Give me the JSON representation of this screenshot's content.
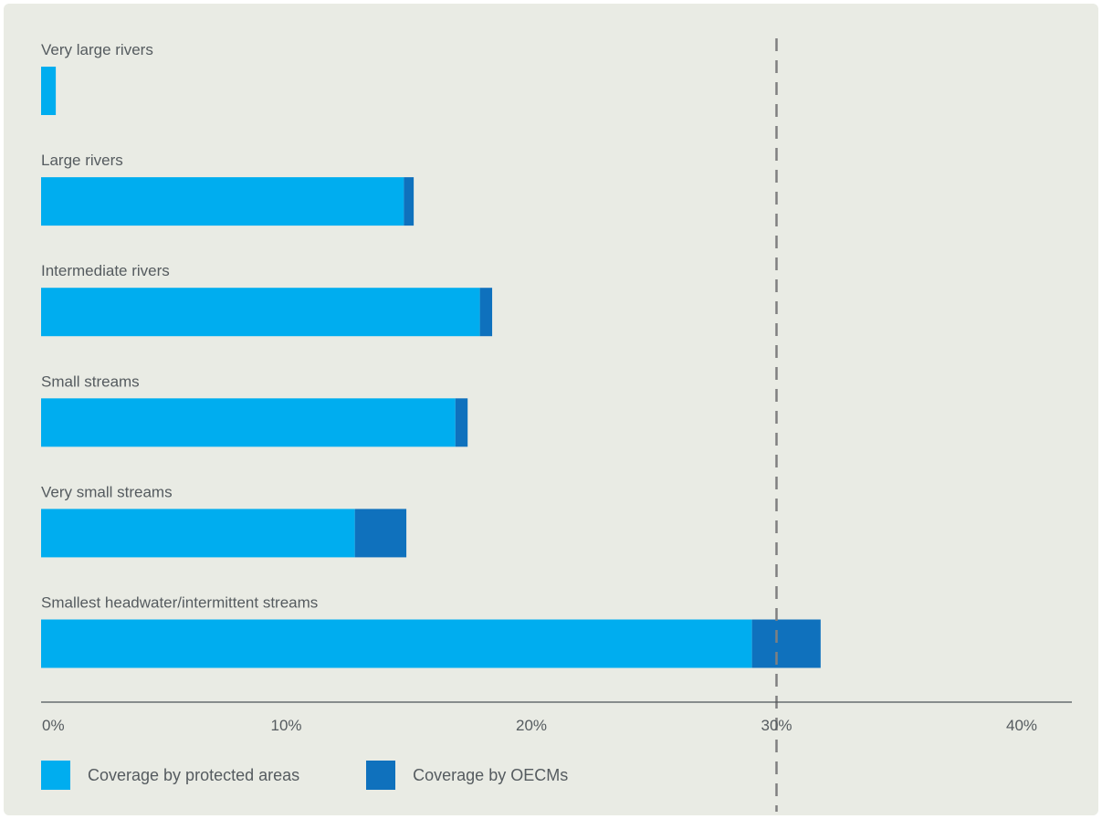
{
  "chart_data": {
    "type": "bar",
    "orientation": "horizontal",
    "stacked": true,
    "categories": [
      "Very large rivers",
      "Large rivers",
      "Intermediate rivers",
      "Small streams",
      "Very small streams",
      "Smallest headwater/intermittent streams"
    ],
    "series": [
      {
        "name": "Coverage by protected areas",
        "color": "#00adef",
        "values": [
          0.6,
          14.8,
          17.9,
          16.9,
          12.8,
          29.0
        ]
      },
      {
        "name": "Coverage by OECMs",
        "color": "#0f71bd",
        "values": [
          0.0,
          0.4,
          0.5,
          0.5,
          2.1,
          2.8
        ]
      }
    ],
    "xlim": [
      0,
      42
    ],
    "xticks": [
      0,
      10,
      20,
      30,
      40
    ],
    "xtick_labels": [
      "0%",
      "10%",
      "20%",
      "30%",
      "40%"
    ],
    "reference_line": {
      "value": 30,
      "style": "dashed",
      "color": "#808080"
    },
    "title": "",
    "xlabel": "",
    "ylabel": "",
    "grid": false,
    "legend_position": "bottom-left",
    "background_color": "#e9ebe4"
  }
}
